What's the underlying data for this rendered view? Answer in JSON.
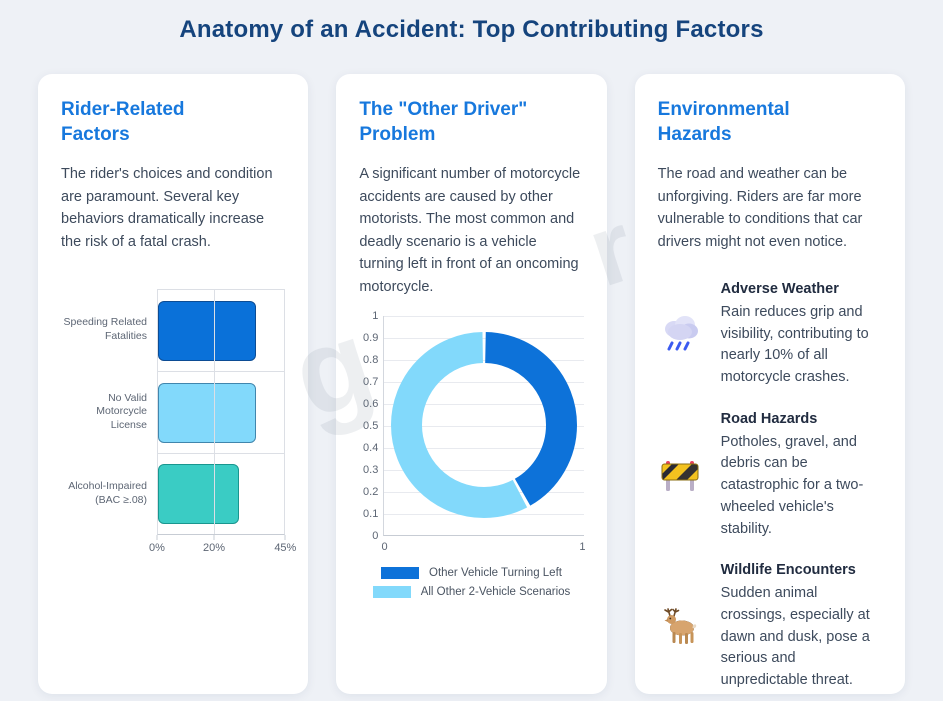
{
  "page": {
    "title": "Anatomy of an Accident: Top Contributing Factors",
    "background": "#eef1f6",
    "title_color": "#15447d",
    "accent_blue": "#1778dd"
  },
  "watermark": {
    "letters": [
      "g",
      "r"
    ]
  },
  "cards": [
    {
      "title": "Rider-Related Factors",
      "body": "The rider's choices and condition are paramount. Several key behaviors dramatically increase the risk of a fatal crash."
    },
    {
      "title": "The \"Other Driver\" Problem",
      "body": "A significant number of motorcycle accidents are caused by other motorists. The most common and deadly scenario is a vehicle turning left in front of an oncoming motorcycle."
    },
    {
      "title": "Environmental Hazards",
      "body": "The road and weather can be unforgiving. Riders are far more vulnerable to conditions that car drivers might not even notice.",
      "items": [
        {
          "icon": "rain-cloud-icon",
          "title": "Adverse Weather",
          "text": "Rain reduces grip and visibility, contributing to nearly 10% of all motorcycle crashes."
        },
        {
          "icon": "construction-barrier-icon",
          "title": "Road Hazards",
          "text": "Potholes, gravel, and debris can be catastrophic for a two-wheeled vehicle's stability."
        },
        {
          "icon": "deer-icon",
          "title": "Wildlife Encounters",
          "text": "Sudden animal crossings, especially at dawn and dusk, pose a serious and unpredictable threat."
        }
      ]
    }
  ],
  "chart_data": [
    {
      "type": "bar",
      "orientation": "horizontal",
      "title": "",
      "categories": [
        "Speeding Related Fatalities",
        "No Valid Motorcycle License",
        "Alcohol-Impaired (BAC ≥.08)"
      ],
      "values": [
        35,
        35,
        29
      ],
      "unit": "%",
      "xlim": [
        0,
        45
      ],
      "xticks": [
        {
          "label": "0%",
          "value": 0
        },
        {
          "label": "20%",
          "value": 20
        },
        {
          "label": "45%",
          "value": 45
        }
      ],
      "bar_colors": [
        "#0a71d9",
        "#82d9fb",
        "#3accc4"
      ],
      "bar_border_colors": [
        "#0c4c94",
        "#4186ad",
        "#19968f"
      ],
      "grid": true,
      "legend": "none"
    },
    {
      "type": "pie",
      "doughnut": true,
      "title": "",
      "labels": [
        "Other Vehicle Turning Left",
        "All Other 2-Vehicle Scenarios"
      ],
      "values": [
        42,
        58
      ],
      "colors": [
        "#0d72d9",
        "#82d9fb"
      ],
      "legend_position": "bottom",
      "yticks": [
        "1",
        "0.9",
        "0.8",
        "0.7",
        "0.6",
        "0.5",
        "0.4",
        "0.3",
        "0.2",
        "0.1",
        "0"
      ],
      "xticks": [
        "0",
        "1"
      ]
    }
  ]
}
